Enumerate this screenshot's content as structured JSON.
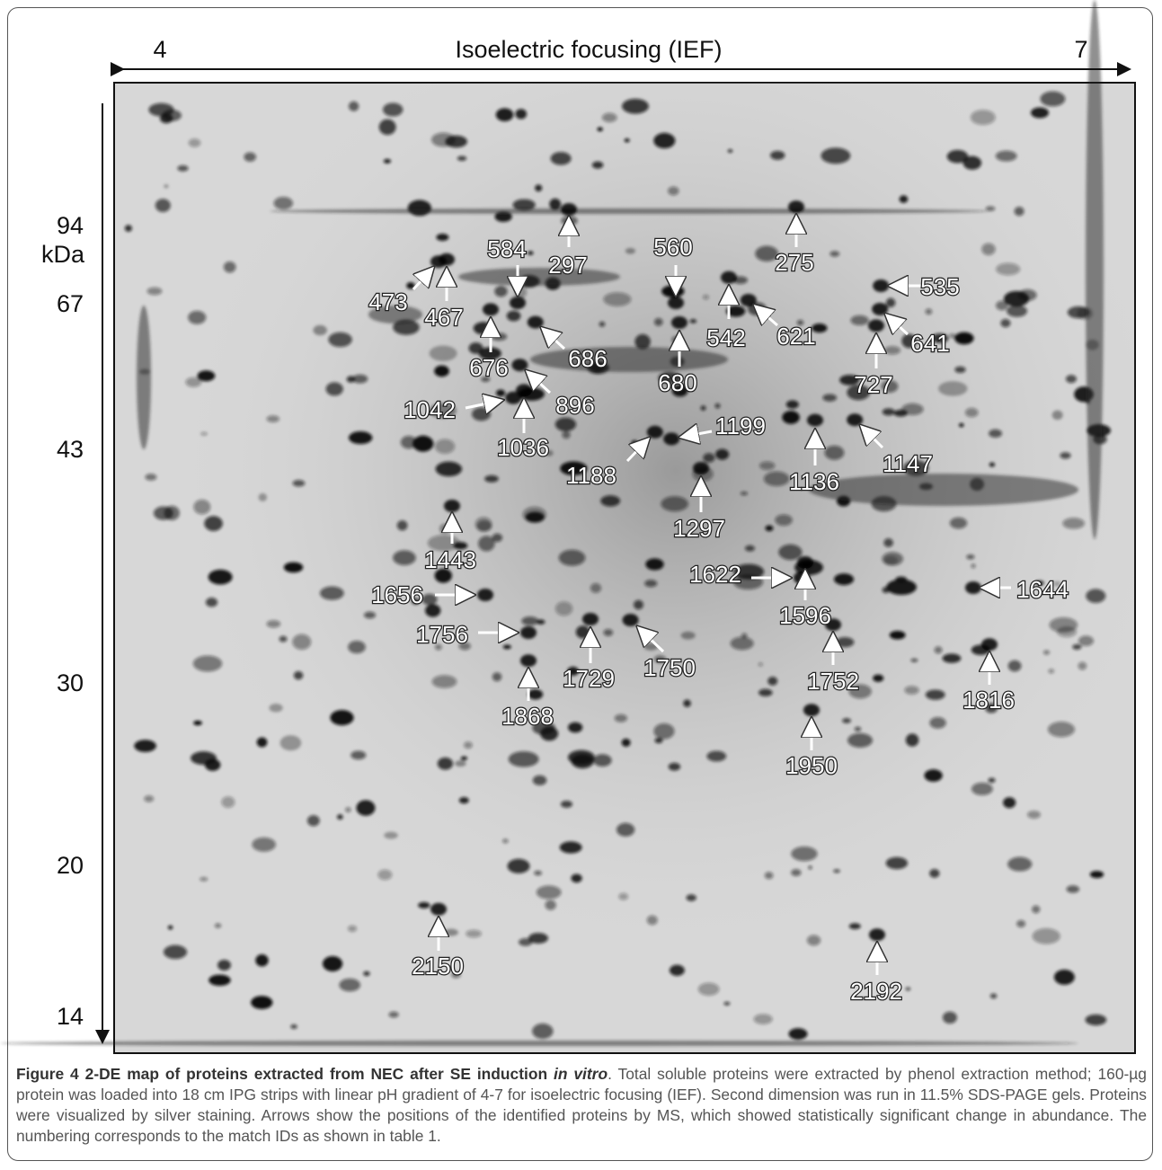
{
  "figure": {
    "ief_axis": {
      "title": "Isoelectric focusing (IEF)",
      "left": "4",
      "right": "7"
    },
    "mw_axis": {
      "unit": "kDa",
      "labels": [
        "94",
        "67",
        "43",
        "30",
        "20",
        "14"
      ]
    },
    "spots": [
      "473",
      "467",
      "584",
      "297",
      "560",
      "275",
      "535",
      "542",
      "621",
      "641",
      "676",
      "686",
      "680",
      "727",
      "896",
      "1042",
      "1036",
      "1199",
      "1188",
      "1147",
      "1136",
      "1297",
      "1443",
      "1622",
      "1644",
      "1656",
      "1596",
      "1756",
      "1729",
      "1750",
      "1752",
      "1816",
      "1868",
      "1950",
      "2150",
      "2192"
    ]
  },
  "caption": {
    "label": "Figure 4",
    "title": "2-DE map of proteins extracted from NEC after SE induction",
    "title_italic": "in vitro",
    "body": ". Total soluble proteins were extracted by phenol extraction method; 160-µg protein was loaded into 18 cm IPG strips with linear pH gradient of 4-7 for isoelectric focusing (IEF). Second dimension was run in 11.5% SDS-PAGE gels. Proteins were visualized by silver staining. Arrows show the positions of the identified proteins by MS, which showed statistically significant change in abundance. The numbering corresponds to the match IDs as shown in table 1."
  }
}
